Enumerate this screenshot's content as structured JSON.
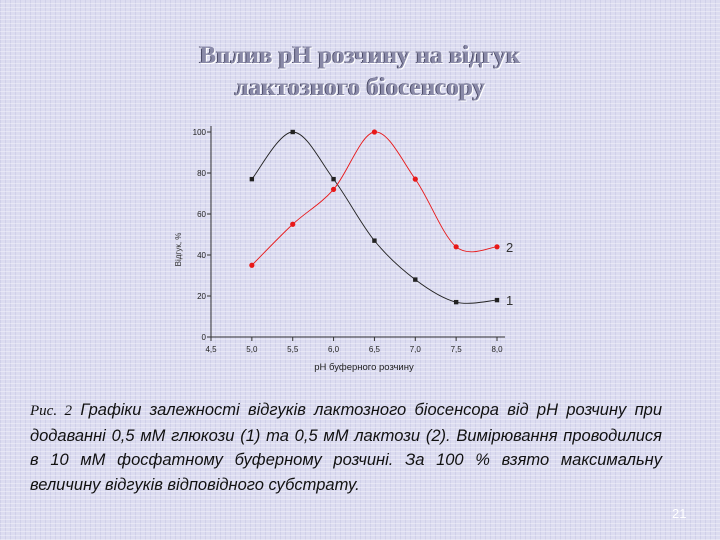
{
  "title": {
    "line1": "Вплив pH розчину на відгук",
    "line2": "лактозного біосенсору"
  },
  "chart_data": {
    "type": "line",
    "xlabel": "pH буферного розчину",
    "ylabel": "Відгук, %",
    "x_ticks": [
      "4,5",
      "5,0",
      "5,5",
      "6,0",
      "6,5",
      "7,0",
      "7,5",
      "8,0"
    ],
    "y_ticks": [
      "0",
      "20",
      "40",
      "60",
      "80",
      "100"
    ],
    "xlim": [
      4.5,
      8.0
    ],
    "ylim": [
      0,
      100
    ],
    "grid": false,
    "series": [
      {
        "name": "1",
        "color": "#222222",
        "x": [
          5.0,
          5.5,
          6.0,
          6.5,
          7.0,
          7.5,
          8.0
        ],
        "y": [
          77,
          100,
          77,
          47,
          28,
          17,
          18
        ]
      },
      {
        "name": "2",
        "color": "#e81818",
        "x": [
          5.0,
          5.5,
          6.0,
          6.5,
          7.0,
          7.5,
          8.0
        ],
        "y": [
          35,
          55,
          72,
          100,
          77,
          44,
          44
        ]
      }
    ]
  },
  "caption": {
    "label": "Рис. 2",
    "text": " Графіки залежності відгуків лактозного біосенсора від pH розчину при додаванні 0,5 мМ глюкози (1) та 0,5 мМ лактози (2). Вимірювання проводилися в 10 мМ фосфатному буферному розчині.  За 100 % взято максимальну величину відгуків відповідного субстрату."
  },
  "page_number": "21"
}
